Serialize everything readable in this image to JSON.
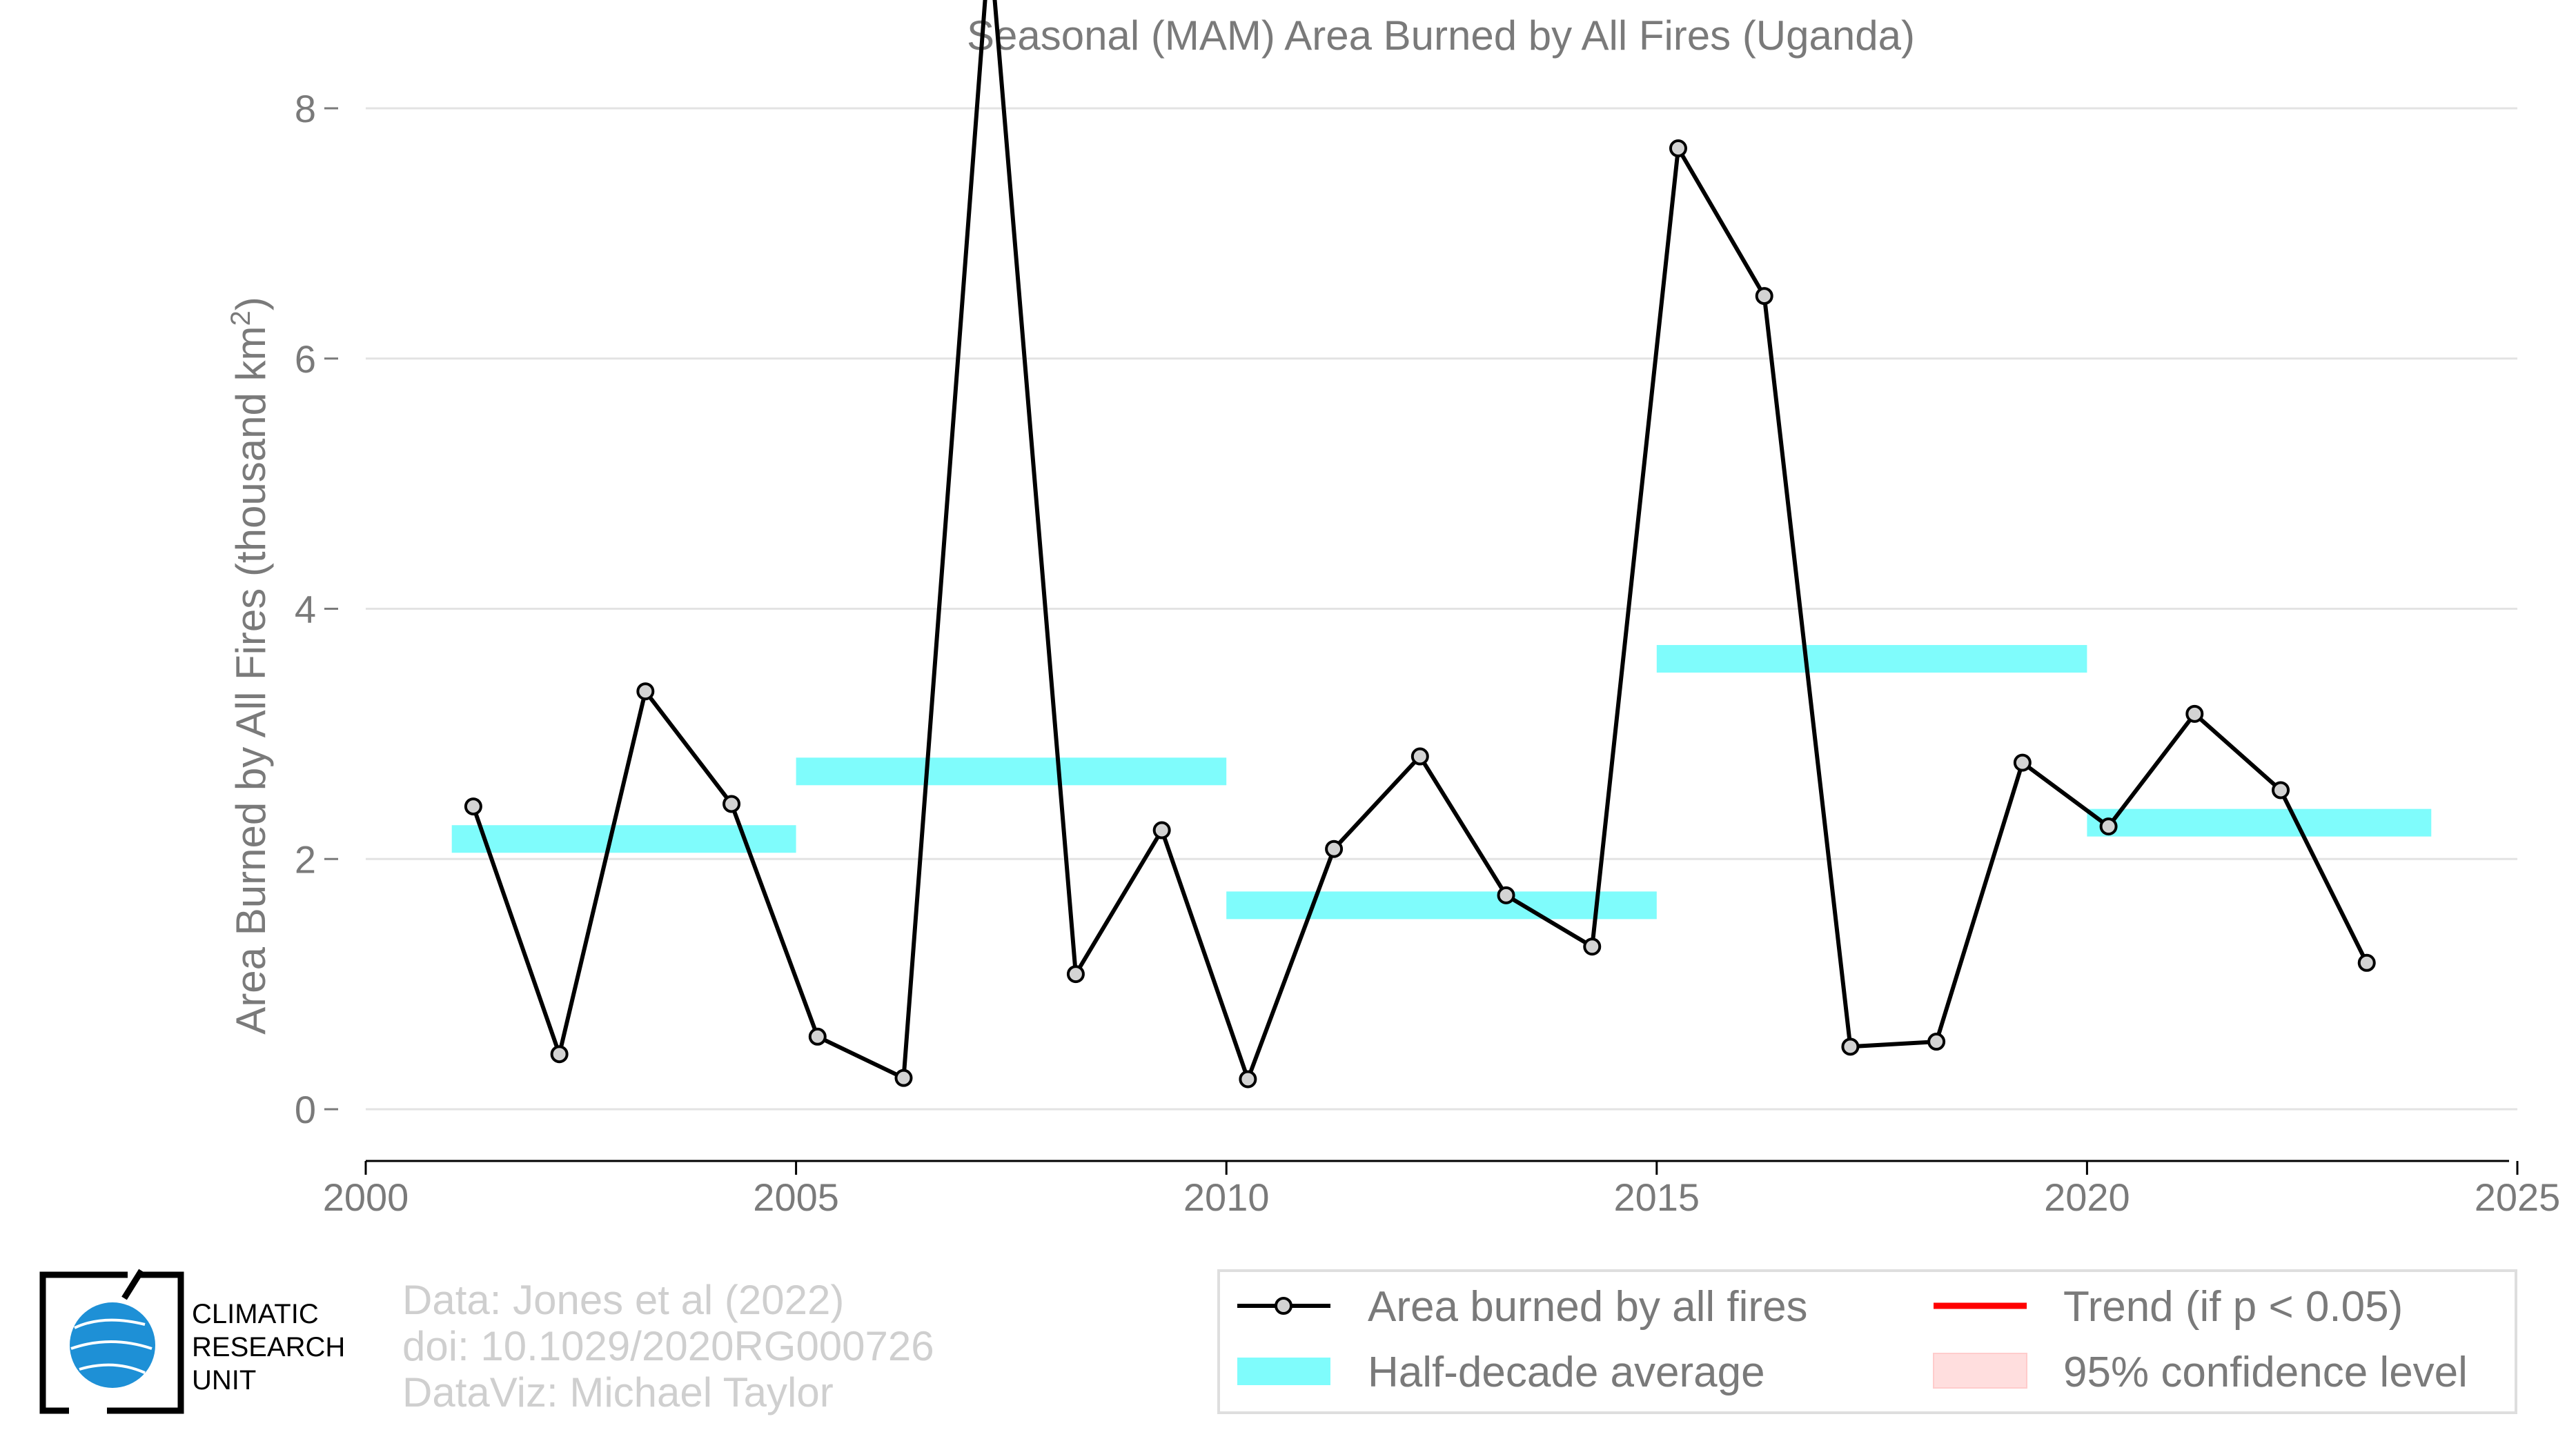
{
  "chart_data": {
    "type": "line",
    "title": "Seasonal (MAM) Area Burned by All Fires (Uganda)",
    "ylabel_main": "Area Burned by All Fires (thousand km",
    "ylabel_sup": "2",
    "ylabel_close": ")",
    "xlim": [
      2000,
      2025
    ],
    "ylim": [
      -0.5,
      9.6
    ],
    "x_ticks": [
      "2000",
      "2005",
      "2010",
      "2015",
      "2020",
      "2025"
    ],
    "y_ticks": [
      "0",
      "2",
      "4",
      "6",
      "8"
    ],
    "grid": "horizontal",
    "series": [
      {
        "name": "Area burned by all fires",
        "x": [
          2001.25,
          2002.25,
          2003.25,
          2004.25,
          2005.25,
          2006.25,
          2007.25,
          2008.25,
          2009.25,
          2010.25,
          2011.25,
          2012.25,
          2013.25,
          2014.25,
          2015.25,
          2016.25,
          2017.25,
          2018.25,
          2019.25,
          2020.25,
          2021.25,
          2022.25,
          2023.25
        ],
        "values": [
          2.42,
          0.44,
          3.34,
          2.44,
          0.58,
          0.25,
          9.35,
          1.08,
          2.23,
          0.24,
          2.08,
          2.82,
          1.71,
          1.3,
          7.68,
          6.5,
          0.5,
          0.54,
          2.77,
          2.26,
          3.16,
          2.55,
          1.17
        ]
      }
    ],
    "half_decade_average": {
      "name": "Half-decade average",
      "segments": [
        {
          "x": [
            2001,
            2005
          ],
          "value": 2.16
        },
        {
          "x": [
            2005,
            2010
          ],
          "value": 2.7
        },
        {
          "x": [
            2010,
            2015
          ],
          "value": 1.63
        },
        {
          "x": [
            2015,
            2020
          ],
          "value": 3.6
        },
        {
          "x": [
            2020,
            2024
          ],
          "value": 2.29
        }
      ]
    },
    "legend": {
      "placement": "bottom-right",
      "items": [
        "Area burned by all fires",
        "Trend (if p < 0.05)",
        "Half-decade average",
        "95% confidence level"
      ]
    },
    "credits": [
      "Data: Jones et al (2022)",
      "doi: 10.1029/2020RG000726",
      "DataViz: Michael Taylor"
    ],
    "logo_lines": [
      "CLIMATIC",
      "RESEARCH",
      "UNIT"
    ],
    "colors": {
      "line": "#000000",
      "marker_fill": "#d3d3d3",
      "half_decade": "#7ffcfc",
      "trend": "#ff0000",
      "confidence": "#ffdede",
      "grid": "#e3e3e3",
      "text": "#7a7a7a",
      "credit": "#cfcfcf",
      "logo_blue": "#1e90d6"
    }
  }
}
